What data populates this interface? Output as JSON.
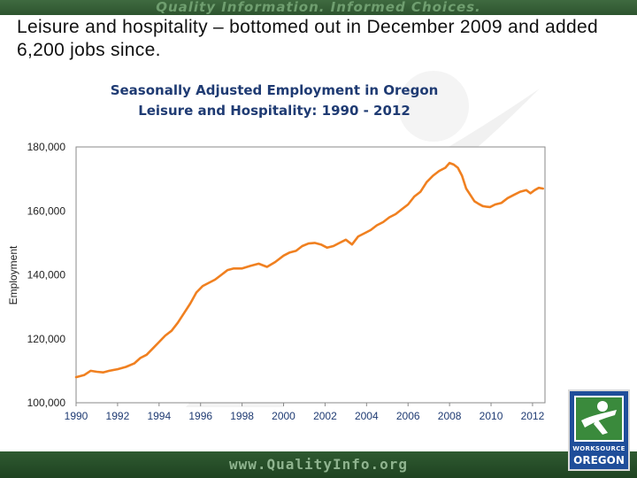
{
  "header": {
    "tagline": "Quality Information. Informed Choices."
  },
  "slide": {
    "headline": "Leisure and hospitality – bottomed out in December 2009 and added 6,200 jobs since."
  },
  "footer": {
    "url": "www.QualityInfo.org"
  },
  "logo": {
    "line1": "WORKSOURCE",
    "line2": "OREGON"
  },
  "colors": {
    "series_line": "#f08020",
    "title_text": "#1f3b73",
    "brand_green": "#2d542f"
  },
  "chart_data": {
    "type": "line",
    "title_line1": "Seasonally Adjusted Employment in Oregon",
    "title_line2": "Leisure and Hospitality:  1990 - 2012",
    "xlabel": "",
    "ylabel": "Employment",
    "xlim": [
      1990,
      2012.6
    ],
    "ylim": [
      100000,
      180000
    ],
    "y_ticks": [
      {
        "value": 180000,
        "label": "180,000"
      },
      {
        "value": 160000,
        "label": "160,000"
      },
      {
        "value": 140000,
        "label": "140,000"
      },
      {
        "value": 120000,
        "label": "120,000"
      },
      {
        "value": 100000,
        "label": "100,000"
      }
    ],
    "x_ticks": [
      {
        "value": 1990,
        "label": "1990"
      },
      {
        "value": 1992,
        "label": "1992"
      },
      {
        "value": 1994,
        "label": "1994"
      },
      {
        "value": 1996,
        "label": "1996"
      },
      {
        "value": 1998,
        "label": "1998"
      },
      {
        "value": 2000,
        "label": "2000"
      },
      {
        "value": 2002,
        "label": "2002"
      },
      {
        "value": 2004,
        "label": "2004"
      },
      {
        "value": 2006,
        "label": "2006"
      },
      {
        "value": 2008,
        "label": "2008"
      },
      {
        "value": 2010,
        "label": "2010"
      },
      {
        "value": 2012,
        "label": "2012"
      }
    ],
    "grid": "horizontal",
    "series": [
      {
        "x": [
          1990.0,
          1990.4,
          1990.7,
          1991.0,
          1991.3,
          1991.6,
          1992.0,
          1992.4,
          1992.8,
          1993.1,
          1993.4,
          1993.7,
          1994.0,
          1994.3,
          1994.6,
          1994.9,
          1995.2,
          1995.5,
          1995.8,
          1996.1,
          1996.4,
          1996.7,
          1997.0,
          1997.3,
          1997.6,
          1998.0,
          1998.4,
          1998.8,
          1999.2,
          1999.6,
          2000.0,
          2000.3,
          2000.6,
          2000.9,
          2001.2,
          2001.5,
          2001.8,
          2002.1,
          2002.4,
          2002.7,
          2003.0,
          2003.3,
          2003.6,
          2003.9,
          2004.2,
          2004.5,
          2004.8,
          2005.1,
          2005.4,
          2005.7,
          2006.0,
          2006.3,
          2006.6,
          2006.9,
          2007.2,
          2007.5,
          2007.8,
          2008.0,
          2008.2,
          2008.4,
          2008.6,
          2008.8,
          2009.0,
          2009.2,
          2009.4,
          2009.6,
          2009.8,
          2009.95,
          2010.2,
          2010.5,
          2010.8,
          2011.1,
          2011.4,
          2011.7,
          2011.9,
          2012.1,
          2012.3,
          2012.5
        ],
        "y": [
          108000,
          108700,
          110000,
          109700,
          109500,
          110000,
          110500,
          111200,
          112300,
          114000,
          115000,
          117000,
          119000,
          121000,
          122500,
          125000,
          128000,
          131000,
          134500,
          136500,
          137500,
          138500,
          140000,
          141500,
          142000,
          142000,
          142800,
          143500,
          142500,
          144000,
          146000,
          147000,
          147500,
          149000,
          149800,
          150000,
          149500,
          148500,
          149000,
          150000,
          151000,
          149500,
          152000,
          153000,
          154000,
          155500,
          156500,
          158000,
          159000,
          160500,
          162000,
          164500,
          166000,
          169000,
          171000,
          172500,
          173500,
          175000,
          174500,
          173500,
          171000,
          167000,
          165000,
          163000,
          162200,
          161500,
          161300,
          161200,
          162000,
          162500,
          164000,
          165000,
          166000,
          166500,
          165500,
          166500,
          167200,
          167000
        ]
      }
    ]
  }
}
